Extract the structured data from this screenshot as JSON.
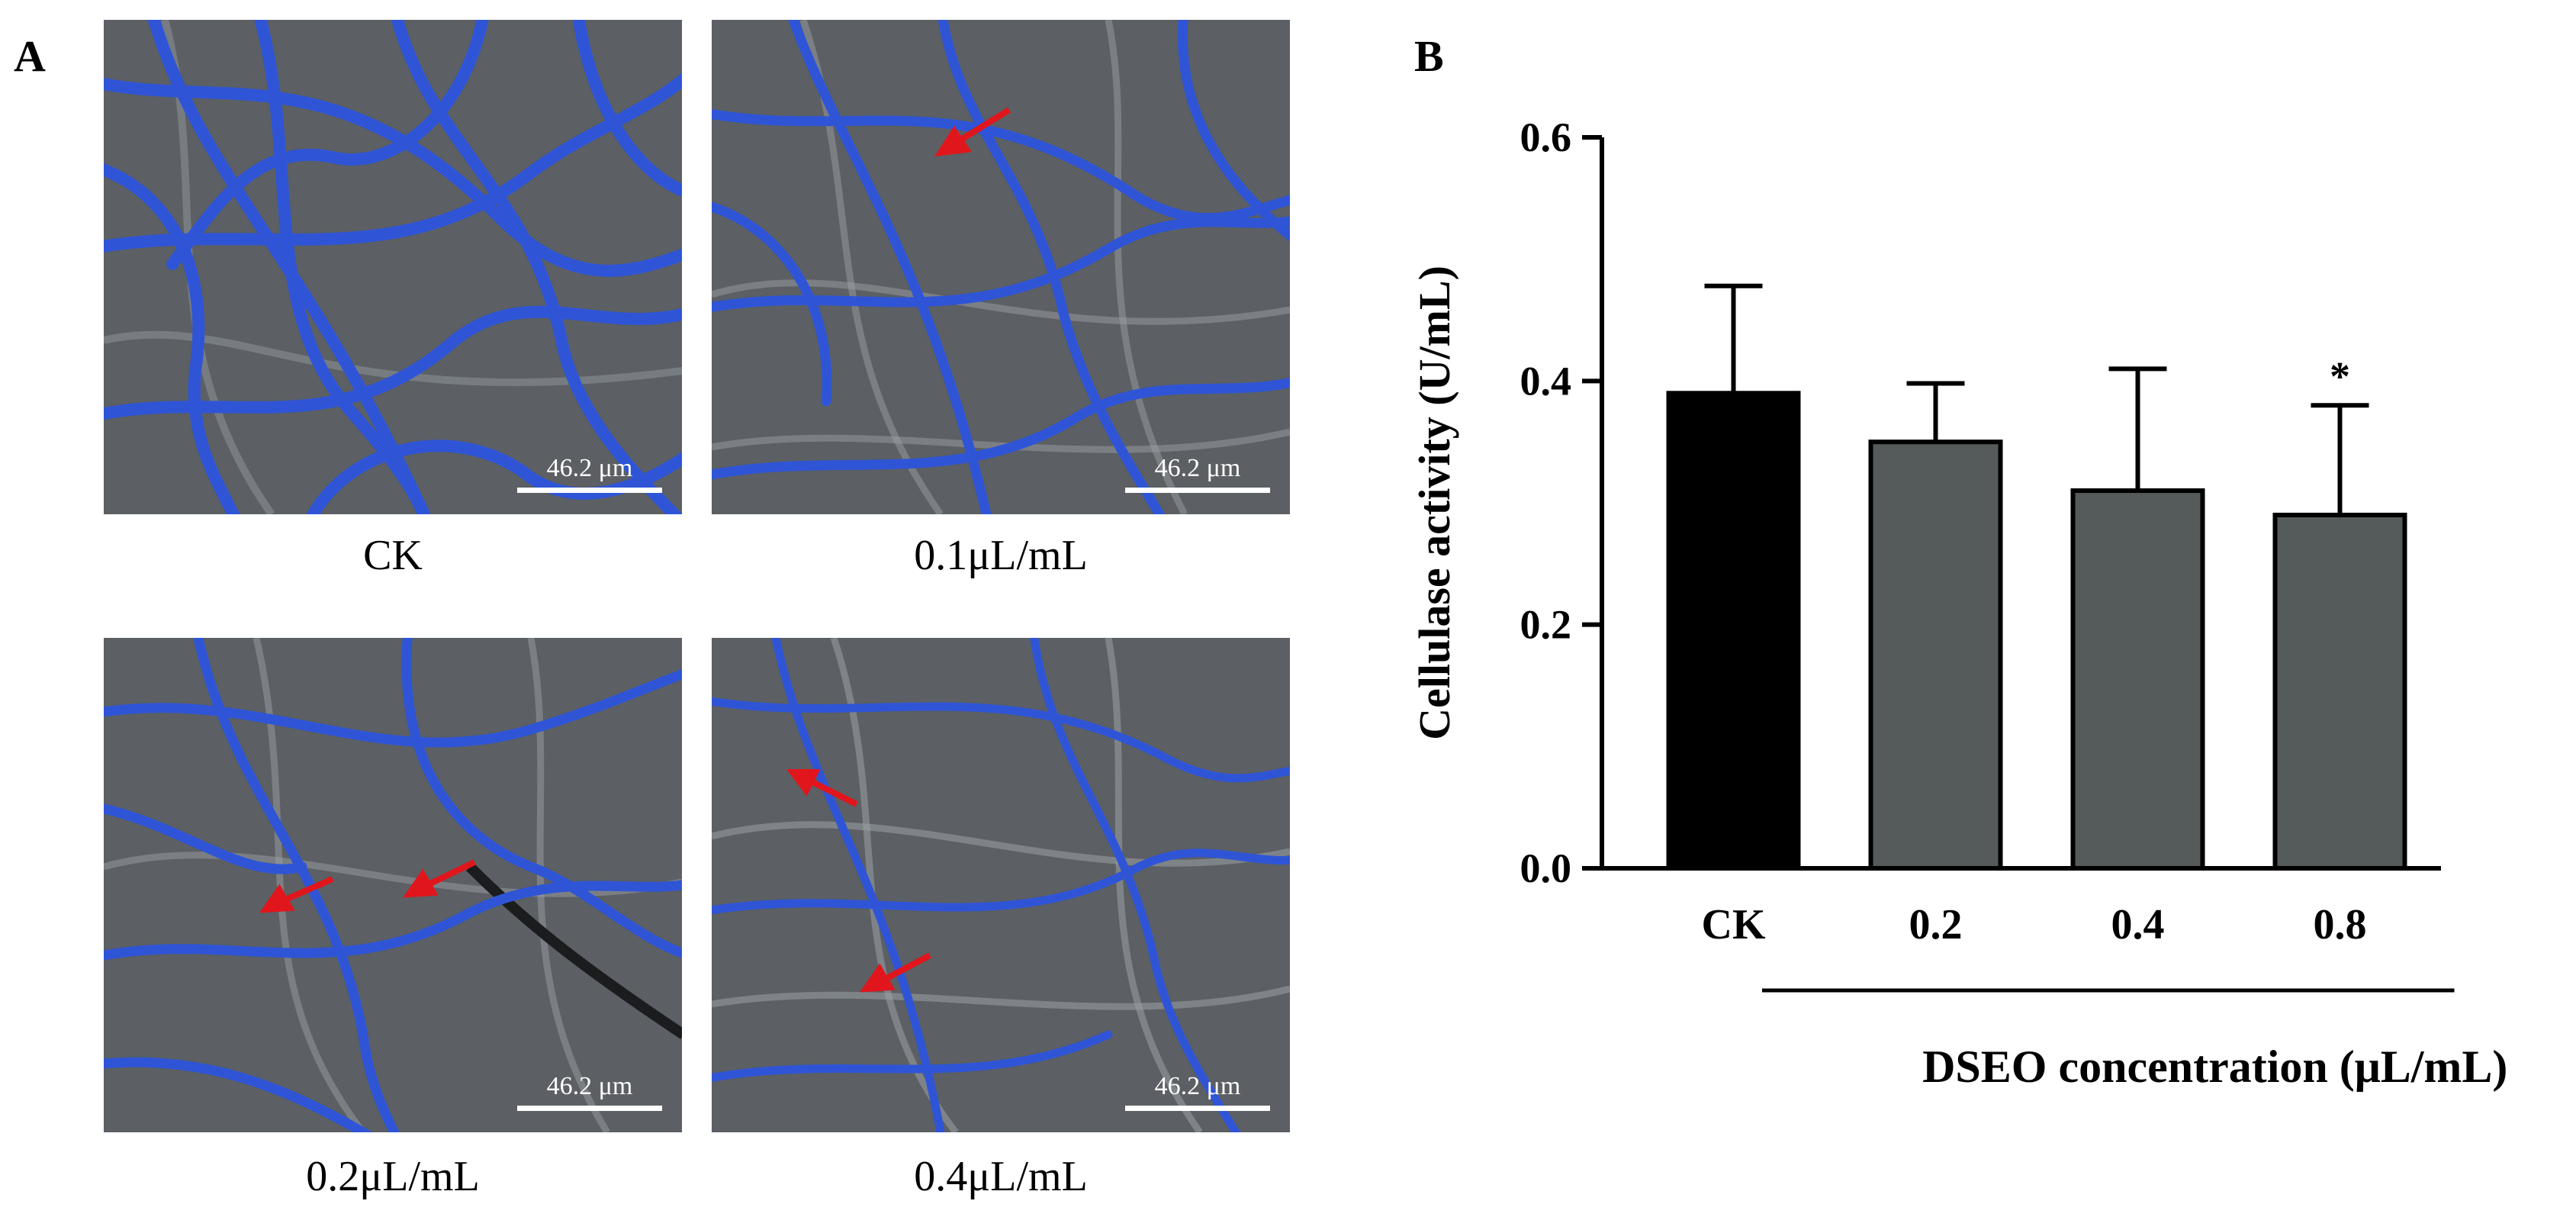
{
  "panel_a": {
    "letter": "A",
    "images": [
      {
        "caption": "CK",
        "scale_label": "46.2 μm"
      },
      {
        "caption": "0.1μL/mL",
        "scale_label": "46.2 μm"
      },
      {
        "caption": "0.2μL/mL",
        "scale_label": "46.2 μm"
      },
      {
        "caption": "0.4μL/mL",
        "scale_label": "46.2 μm"
      }
    ],
    "colors": {
      "hyphae": "#2f55d6",
      "background": "#5c5f63",
      "arrow": "#e0161c"
    }
  },
  "panel_b": {
    "letter": "B"
  },
  "chart_data": {
    "type": "bar",
    "categories": [
      "CK",
      "0.2",
      "0.4",
      "0.8"
    ],
    "values": [
      0.39,
      0.35,
      0.31,
      0.29
    ],
    "errors": [
      0.088,
      0.048,
      0.1,
      0.09
    ],
    "significance": [
      "",
      "",
      "",
      "*"
    ],
    "bar_colors": [
      "#000000",
      "#555a5a",
      "#555a5a",
      "#555a5a"
    ],
    "xlabel": "DSEO concentration (μL/mL)",
    "ylabel": "Cellulase activity (U/mL)",
    "ylim": [
      0,
      0.6
    ],
    "yticks": [
      "0.0",
      "0.2",
      "0.4",
      "0.6"
    ],
    "grid": false,
    "legend": "none"
  }
}
